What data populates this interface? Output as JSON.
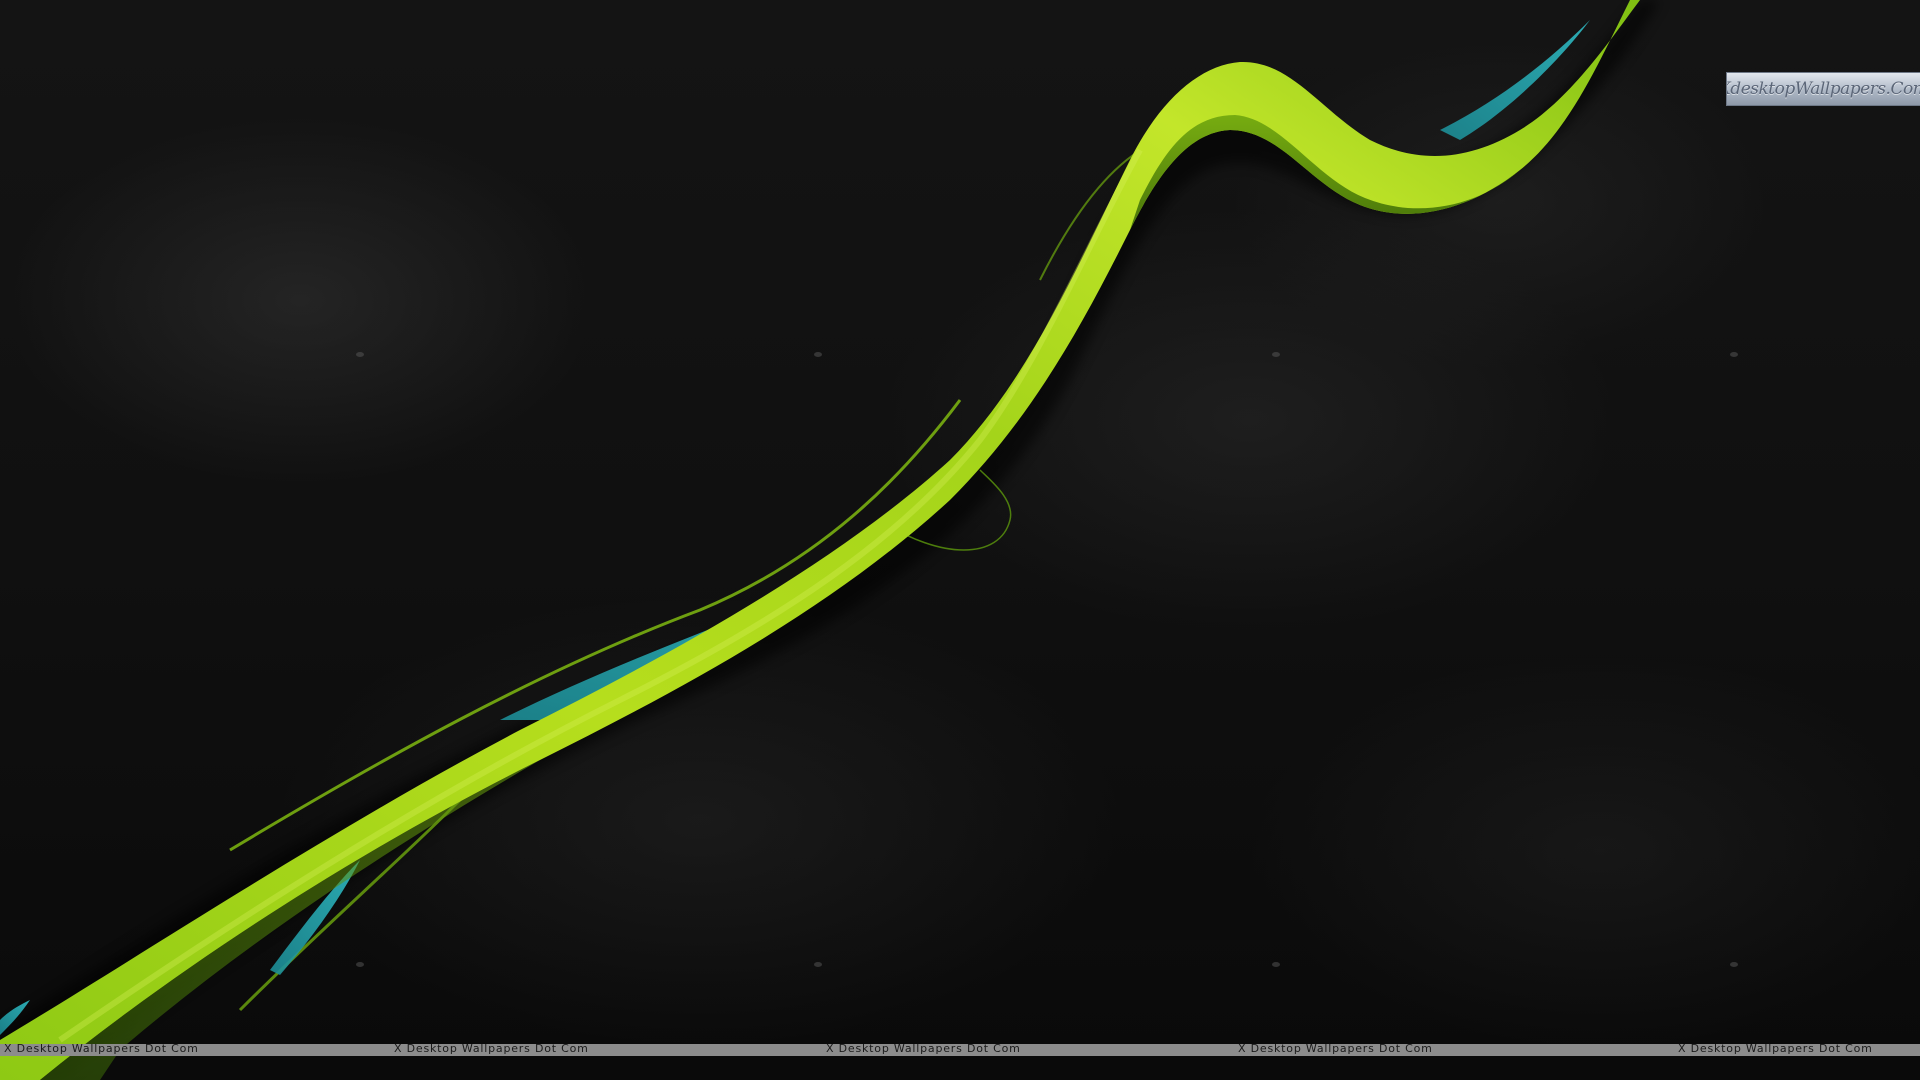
{
  "image": {
    "background_color": "#0c0c0c",
    "ribbon_color_light": "#b8e01e",
    "ribbon_color_dark": "#5e9a0c",
    "accent_color": "#26a9b4"
  },
  "logo": {
    "text": "XdesktopWallpapers.Com"
  },
  "footer": {
    "watermarks": [
      "X Desktop Wallpapers Dot Com",
      "X Desktop Wallpapers Dot Com",
      "X Desktop Wallpapers Dot Com",
      "X Desktop Wallpapers Dot Com",
      "X Desktop Wallpapers Dot Com"
    ]
  }
}
